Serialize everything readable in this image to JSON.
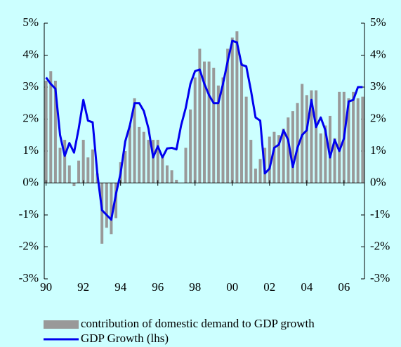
{
  "chart_data": {
    "type": "bar-line",
    "x": [
      1990,
      1990.25,
      1990.5,
      1990.75,
      1991,
      1991.25,
      1991.5,
      1991.75,
      1992,
      1992.25,
      1992.5,
      1992.75,
      1993,
      1993.25,
      1993.5,
      1993.75,
      1994,
      1994.25,
      1994.5,
      1994.75,
      1995,
      1995.25,
      1995.5,
      1995.75,
      1996,
      1996.25,
      1996.5,
      1996.75,
      1997,
      1997.25,
      1997.5,
      1997.75,
      1998,
      1998.25,
      1998.5,
      1998.75,
      1999,
      1999.25,
      1999.5,
      1999.75,
      2000,
      2000.25,
      2000.5,
      2000.75,
      2001,
      2001.25,
      2001.5,
      2001.75,
      2002,
      2002.25,
      2002.5,
      2002.75,
      2003,
      2003.25,
      2003.5,
      2003.75,
      2004,
      2004.25,
      2004.5,
      2004.75,
      2005,
      2005.25,
      2005.5,
      2005.75,
      2006,
      2006.25,
      2006.5,
      2006.75,
      2007
    ],
    "series": [
      {
        "name": "contribution of domestic demand to GDP growth",
        "type": "bar",
        "color": "#999999",
        "values": [
          3.2,
          3.5,
          3.2,
          1.1,
          1.35,
          0.55,
          -0.1,
          0.7,
          1.35,
          0.8,
          1.05,
          0.3,
          -1.9,
          -1.4,
          -1.6,
          -1.1,
          0.65,
          1.0,
          1.8,
          2.65,
          1.75,
          1.6,
          1.35,
          1.35,
          1.35,
          0.85,
          0.55,
          0.4,
          0.1,
          0.0,
          1.1,
          2.3,
          3.3,
          4.2,
          3.8,
          3.8,
          3.6,
          3.05,
          3.3,
          4.2,
          4.55,
          4.75,
          3.75,
          2.7,
          1.35,
          0.45,
          0.75,
          1.1,
          1.45,
          1.6,
          1.5,
          1.7,
          2.05,
          2.25,
          2.5,
          3.1,
          2.75,
          2.9,
          2.9,
          1.55,
          1.8,
          2.1,
          1.4,
          2.85,
          2.85,
          2.65,
          2.85,
          2.65,
          2.7
        ]
      },
      {
        "name": "GDP Growth (lhs)",
        "type": "line",
        "color": "#0000ee",
        "values": [
          3.3,
          3.1,
          2.95,
          1.5,
          0.85,
          1.25,
          0.95,
          1.7,
          2.6,
          1.95,
          1.9,
          0.3,
          -0.85,
          -1.0,
          -1.15,
          -0.35,
          0.3,
          1.3,
          1.8,
          2.5,
          2.5,
          2.25,
          1.7,
          0.8,
          1.15,
          0.8,
          1.08,
          1.1,
          1.05,
          1.8,
          2.35,
          3.1,
          3.5,
          3.55,
          3.1,
          2.75,
          2.5,
          2.5,
          3.1,
          3.8,
          4.45,
          4.4,
          3.7,
          3.65,
          2.9,
          2.05,
          1.95,
          0.3,
          0.45,
          1.1,
          1.2,
          1.65,
          1.35,
          0.5,
          1.1,
          1.5,
          1.65,
          2.6,
          1.75,
          2.05,
          1.65,
          0.8,
          1.35,
          1.0,
          1.4,
          2.55,
          2.6,
          3.0,
          3.0
        ]
      }
    ],
    "xlim": [
      1989.9,
      2007.1
    ],
    "xticks": [
      {
        "value": 1990,
        "label": "90"
      },
      {
        "value": 1992,
        "label": "92"
      },
      {
        "value": 1994,
        "label": "94"
      },
      {
        "value": 1996,
        "label": "96"
      },
      {
        "value": 1998,
        "label": "98"
      },
      {
        "value": 2000,
        "label": "00"
      },
      {
        "value": 2002,
        "label": "02"
      },
      {
        "value": 2004,
        "label": "04"
      },
      {
        "value": 2006,
        "label": "06"
      }
    ],
    "ylim": [
      -3,
      5
    ],
    "yticks": [
      {
        "value": 5,
        "label": "5%"
      },
      {
        "value": 4,
        "label": "4%"
      },
      {
        "value": 3,
        "label": "3%"
      },
      {
        "value": 2,
        "label": "2%"
      },
      {
        "value": 1,
        "label": "1%"
      },
      {
        "value": 0,
        "label": "0%"
      },
      {
        "value": -1,
        "label": "-1%"
      },
      {
        "value": -2,
        "label": "-2%"
      },
      {
        "value": -3,
        "label": "-3%"
      }
    ],
    "y2lim": [
      -3,
      5
    ],
    "y2ticks": [
      {
        "value": 5,
        "label": "5%"
      },
      {
        "value": 4,
        "label": "4%"
      },
      {
        "value": 3,
        "label": "3%"
      },
      {
        "value": 2,
        "label": "2%"
      },
      {
        "value": 1,
        "label": "1%"
      },
      {
        "value": 0,
        "label": "0%"
      },
      {
        "value": -1,
        "label": "-1%"
      },
      {
        "value": -2,
        "label": "-2%"
      },
      {
        "value": -3,
        "label": "-3%"
      }
    ]
  }
}
